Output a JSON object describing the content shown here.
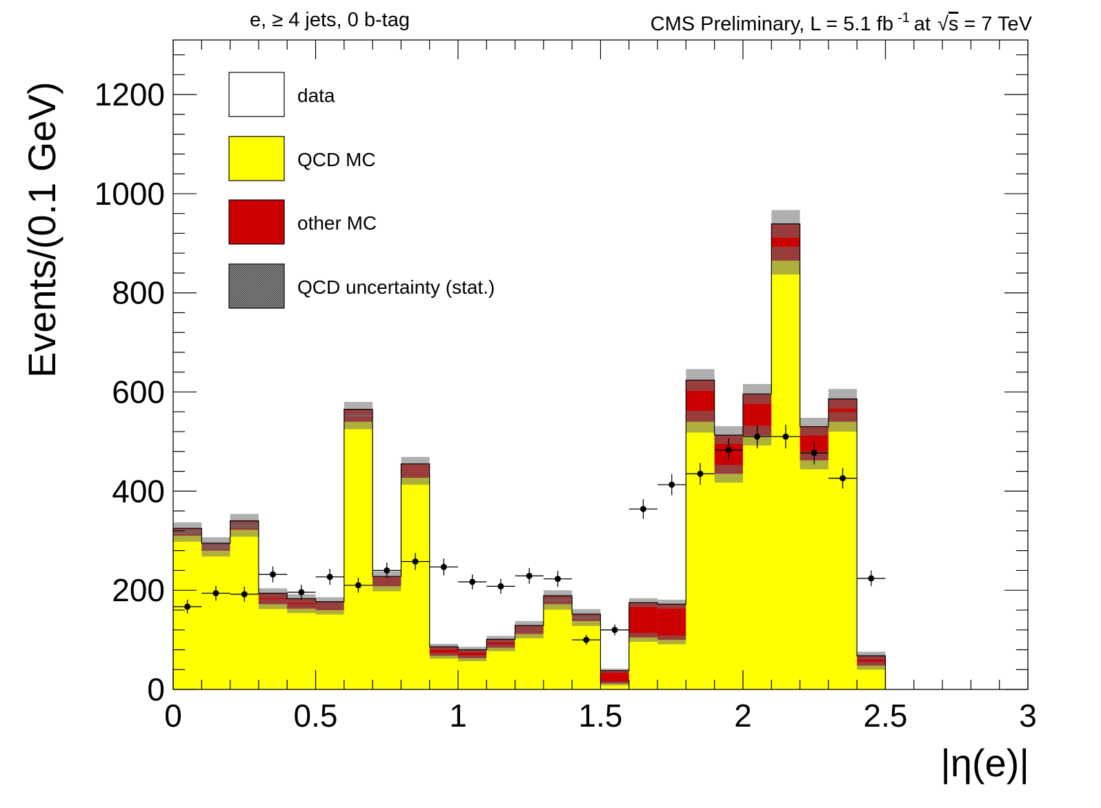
{
  "chart_data": {
    "type": "bar",
    "stacked": true,
    "title_left": "e, ≥ 4 jets, 0 b-tag",
    "title_right_prefix": "CMS Preliminary, L = 5.1 fb",
    "title_right_sup": "-1",
    "title_right_mid": "at",
    "title_right_sqrt": "s",
    "title_right_suffix": "= 7 TeV",
    "xlabel": "|η(e)|",
    "ylabel": "Events/(0.1 GeV)",
    "xlim": [
      0,
      3
    ],
    "ylim": [
      0,
      1310
    ],
    "bin_width": 0.1,
    "x_ticks": [
      {
        "v": 0,
        "label": "0"
      },
      {
        "v": 0.5,
        "label": "0.5"
      },
      {
        "v": 1,
        "label": "1"
      },
      {
        "v": 1.5,
        "label": "1.5"
      },
      {
        "v": 2,
        "label": "2"
      },
      {
        "v": 2.5,
        "label": "2.5"
      },
      {
        "v": 3,
        "label": "3"
      }
    ],
    "y_ticks": [
      {
        "v": 0,
        "label": "0"
      },
      {
        "v": 200,
        "label": "200"
      },
      {
        "v": 400,
        "label": "400"
      },
      {
        "v": 600,
        "label": "600"
      },
      {
        "v": 800,
        "label": "800"
      },
      {
        "v": 1000,
        "label": "1000"
      },
      {
        "v": 1200,
        "label": "1200"
      }
    ],
    "bins_low_edge": [
      0.0,
      0.1,
      0.2,
      0.3,
      0.4,
      0.5,
      0.6,
      0.7,
      0.8,
      0.9,
      1.0,
      1.1,
      1.2,
      1.3,
      1.4,
      1.5,
      1.6,
      1.7,
      1.8,
      1.9,
      2.0,
      2.1,
      2.2,
      2.3,
      2.4
    ],
    "series": [
      {
        "name": "QCD MC",
        "color": "#ffff00",
        "values": [
          310,
          280,
          322,
          172,
          163,
          160,
          540,
          208,
          427,
          68,
          63,
          84,
          112,
          172,
          138,
          12,
          105,
          100,
          540,
          435,
          512,
          865,
          462,
          540,
          48
        ]
      },
      {
        "name": "other MC",
        "color": "#cc0000",
        "values": [
          15,
          15,
          18,
          22,
          20,
          17,
          25,
          20,
          28,
          18,
          17,
          17,
          17,
          17,
          14,
          26,
          70,
          72,
          84,
          78,
          84,
          74,
          68,
          46,
          20
        ]
      }
    ],
    "qcd_uncertainty": {
      "name": "QCD uncertainty (stat.)",
      "values": [
        12,
        12,
        14,
        10,
        9,
        9,
        15,
        10,
        14,
        6,
        6,
        7,
        9,
        11,
        10,
        4,
        9,
        9,
        22,
        18,
        20,
        28,
        18,
        20,
        8
      ]
    },
    "data": {
      "name": "data",
      "values": [
        167,
        194,
        192,
        232,
        196,
        227,
        210,
        240,
        258,
        247,
        217,
        208,
        229,
        223,
        100,
        120,
        364,
        413,
        435,
        483,
        510,
        510,
        477,
        426,
        224
      ],
      "errors": [
        14,
        15,
        15,
        16,
        15,
        16,
        15,
        16,
        17,
        17,
        15,
        15,
        16,
        16,
        10,
        11,
        20,
        21,
        22,
        23,
        24,
        24,
        23,
        21,
        16
      ]
    },
    "legend": {
      "placement": "top-left",
      "entries": [
        "data",
        "QCD MC",
        "other MC",
        "QCD uncertainty (stat.)"
      ]
    }
  }
}
